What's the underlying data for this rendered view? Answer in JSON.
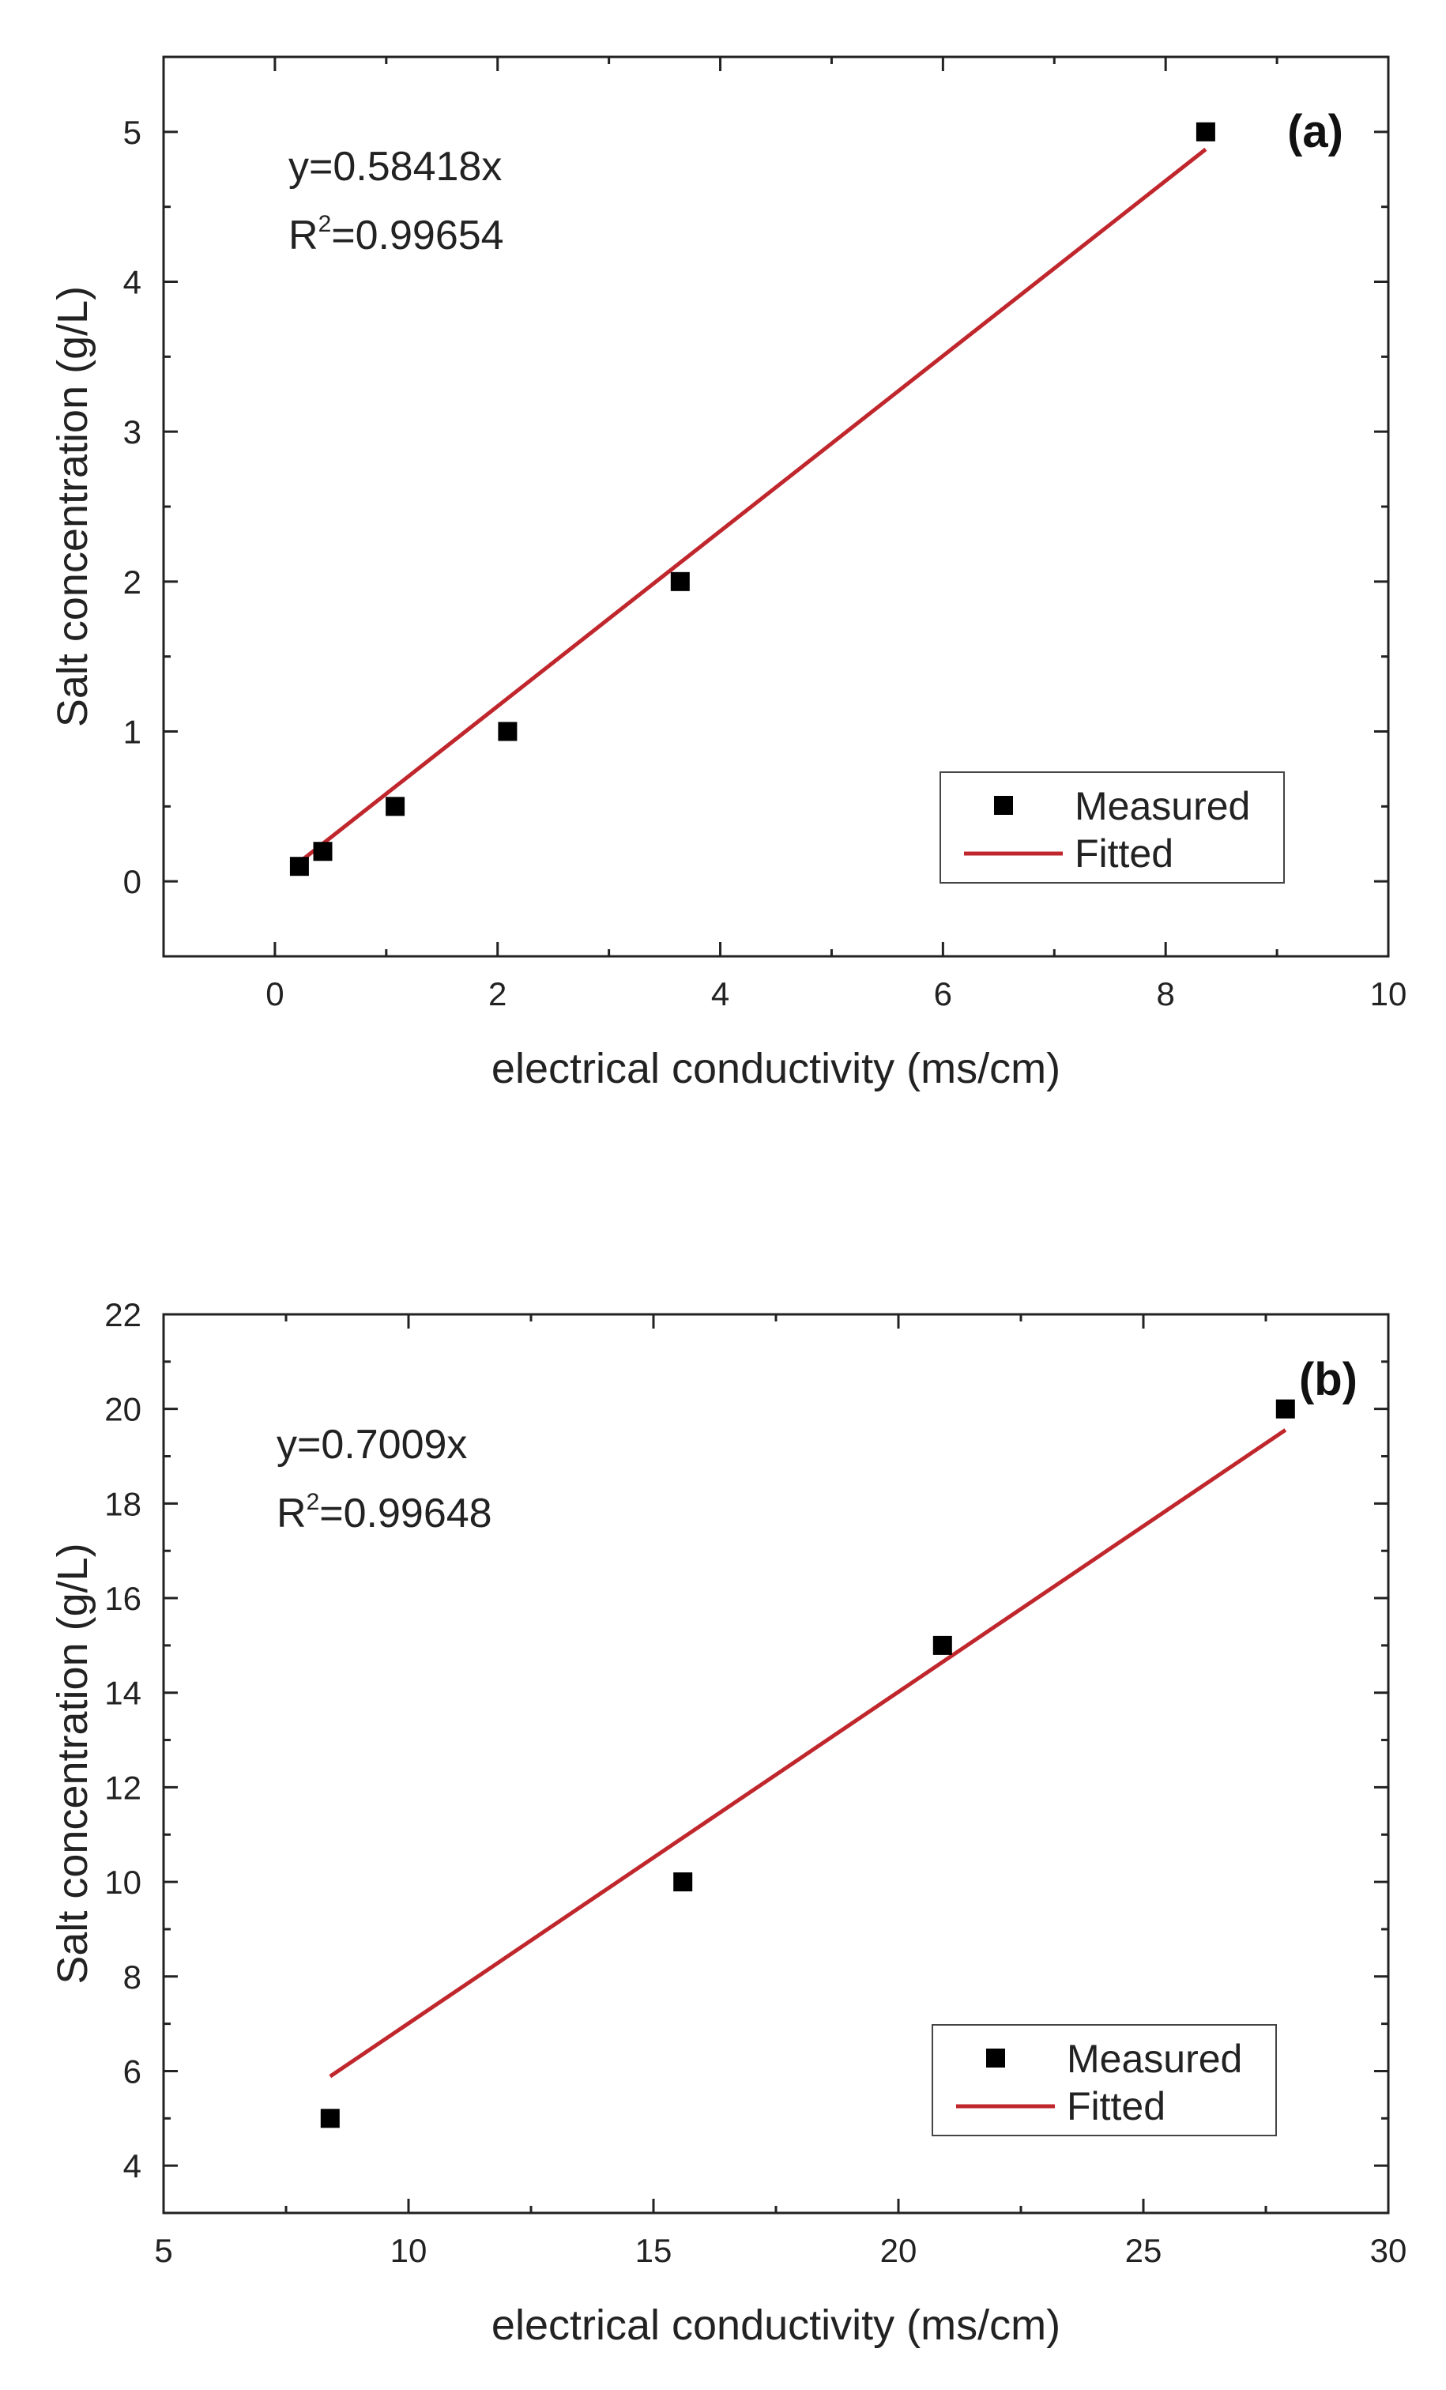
{
  "chart_data": [
    {
      "type": "scatter",
      "panel_label": "(a)",
      "xlabel": "electrical conductivity (ms/cm)",
      "ylabel": "Salt concentration (g/L)",
      "xlim": [
        -1,
        10
      ],
      "ylim": [
        -0.5,
        5.5
      ],
      "xticks": [
        0,
        2,
        4,
        6,
        8,
        10
      ],
      "yticks": [
        0,
        1,
        2,
        3,
        4,
        5
      ],
      "xtick_labels": [
        "0",
        "2",
        "4",
        "6",
        "8",
        "10"
      ],
      "ytick_labels": [
        "0",
        "1",
        "2",
        "3",
        "4",
        "5"
      ],
      "equation": "y=0.58418x",
      "r2_prefix": "R",
      "r2_sup": "2",
      "r2_value": "=0.99654",
      "legend": {
        "measured": "Measured",
        "fitted": "Fitted",
        "position": "bottom-right"
      },
      "series": [
        {
          "name": "Measured",
          "kind": "points",
          "x": [
            0.22,
            0.43,
            1.08,
            2.09,
            3.64,
            8.36
          ],
          "y": [
            0.1,
            0.2,
            0.5,
            1.0,
            2.0,
            5.0
          ]
        },
        {
          "name": "Fitted",
          "kind": "line",
          "slope": 0.58418,
          "x_range": [
            0.22,
            8.36
          ]
        }
      ],
      "colors": {
        "points": "#000000",
        "fit": "#c0272d"
      }
    },
    {
      "type": "scatter",
      "panel_label": "(b)",
      "xlabel": "electrical conductivity (ms/cm)",
      "ylabel": "Salt concentration (g/L)",
      "xlim": [
        5,
        30
      ],
      "ylim": [
        3,
        22
      ],
      "xticks": [
        5,
        10,
        15,
        20,
        25,
        30
      ],
      "yticks": [
        4,
        6,
        8,
        10,
        12,
        14,
        16,
        18,
        20,
        22
      ],
      "xtick_labels": [
        "5",
        "10",
        "15",
        "20",
        "25",
        "30"
      ],
      "ytick_labels": [
        "4",
        "6",
        "8",
        "10",
        "12",
        "14",
        "16",
        "18",
        "20",
        "22"
      ],
      "equation": "y=0.7009x",
      "r2_prefix": "R",
      "r2_sup": "2",
      "r2_value": "=0.99648",
      "legend": {
        "measured": "Measured",
        "fitted": "Fitted",
        "position": "bottom-right"
      },
      "series": [
        {
          "name": "Measured",
          "kind": "points",
          "x": [
            8.4,
            15.6,
            20.9,
            27.9
          ],
          "y": [
            5,
            10,
            15,
            20
          ]
        },
        {
          "name": "Fitted",
          "kind": "line",
          "slope": 0.7009,
          "x_range": [
            8.4,
            27.9
          ]
        }
      ],
      "colors": {
        "points": "#000000",
        "fit": "#c0272d"
      }
    }
  ]
}
